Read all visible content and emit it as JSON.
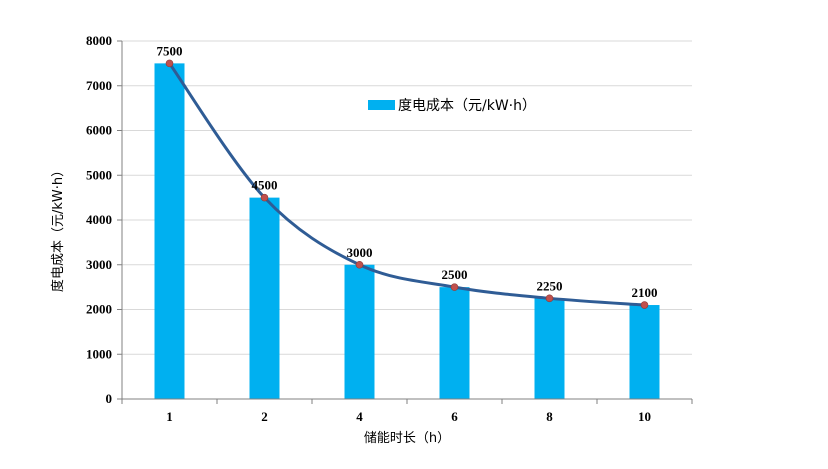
{
  "chart_data": {
    "type": "bar",
    "categories": [
      "1",
      "2",
      "4",
      "6",
      "8",
      "10"
    ],
    "series": [
      {
        "name": "度电成本（元/kW·h）",
        "values": [
          7500,
          4500,
          3000,
          2500,
          2250,
          2100
        ]
      }
    ],
    "data_labels": [
      "7500",
      "4500",
      "3000",
      "2500",
      "2250",
      "2100"
    ],
    "overlay_line": {
      "type": "smooth-line-with-markers",
      "values": [
        7500,
        4500,
        3000,
        2500,
        2250,
        2100
      ]
    },
    "xlabel": "储能时长（h）",
    "ylabel": "度电成本（元/kW·h）",
    "ylim": [
      0,
      8000
    ],
    "yticks": [
      "0",
      "1000",
      "2000",
      "3000",
      "4000",
      "5000",
      "6000",
      "7000",
      "8000"
    ],
    "grid": true,
    "legend_position": "top-center",
    "colors": {
      "bar": "#00B0F0",
      "line": "#2F5C95",
      "marker": "#C0504D",
      "grid": "#D9D9D9",
      "axis": "#808080"
    }
  }
}
